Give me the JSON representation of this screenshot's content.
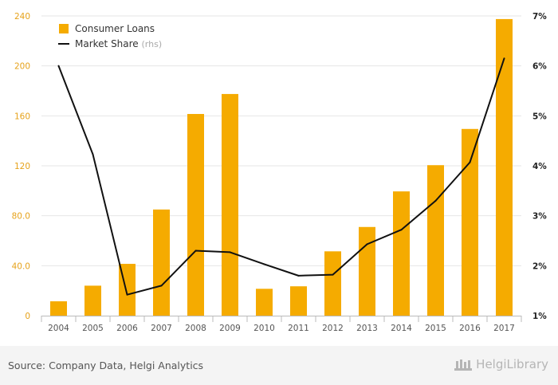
{
  "chart_data": {
    "type": "bar",
    "categories": [
      "2004",
      "2005",
      "2006",
      "2007",
      "2008",
      "2009",
      "2010",
      "2011",
      "2012",
      "2013",
      "2014",
      "2015",
      "2016",
      "2017"
    ],
    "series": [
      {
        "name": "Consumer Loans",
        "type": "bar",
        "axis": "left",
        "color": "#f5ab00",
        "values": [
          11.5,
          24,
          41.5,
          85,
          161.5,
          177.5,
          21.5,
          23.5,
          51.5,
          71,
          99.5,
          120.5,
          149.5,
          237.5
        ]
      },
      {
        "name": "Market Share",
        "name_suffix": "(rhs)",
        "type": "line",
        "axis": "right",
        "color": "#111111",
        "values": [
          6.0,
          4.23,
          1.42,
          1.6,
          2.3,
          2.27,
          2.03,
          1.8,
          1.82,
          2.43,
          2.72,
          3.3,
          4.07,
          6.15
        ]
      }
    ],
    "y_left": {
      "ticks": [
        "0",
        "40.0",
        "80.0",
        "120",
        "160",
        "200",
        "240"
      ],
      "ylim": [
        0,
        240
      ]
    },
    "y_right": {
      "ticks": [
        "1%",
        "2%",
        "3%",
        "4%",
        "5%",
        "6%",
        "7%"
      ],
      "ylim": [
        1,
        7
      ]
    },
    "grid": true,
    "legend_position": "top-left"
  },
  "footer": {
    "source": "Source: Company Data, Helgi Analytics",
    "brand": "HelgiLibrary"
  },
  "colors": {
    "bar": "#f5ab00",
    "line": "#111111",
    "left_axis_text": "#e6a21a",
    "right_axis_text": "#222222"
  }
}
